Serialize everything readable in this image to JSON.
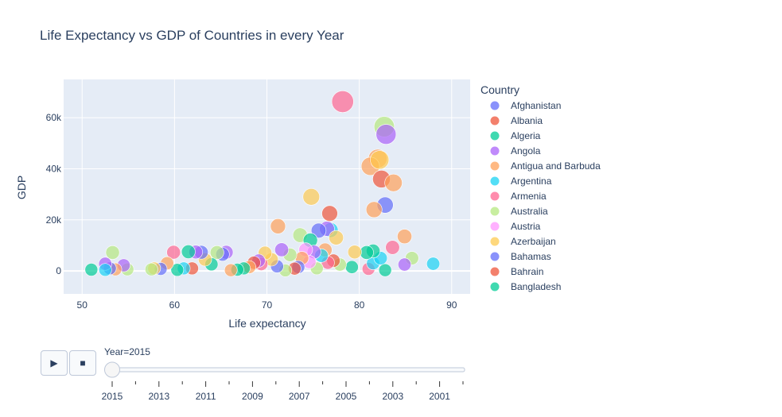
{
  "chart_data": {
    "type": "scatter",
    "title": "Life Expectancy vs GDP of Countries in every Year",
    "xlabel": "Life expectancy",
    "ylabel": "GDP",
    "xlim": [
      48,
      92
    ],
    "ylim": [
      -9000,
      75000
    ],
    "xticks": [
      50,
      60,
      70,
      80,
      90
    ],
    "yticks": [
      0,
      20000,
      40000,
      60000
    ],
    "ytick_labels": [
      "0",
      "20k",
      "40k",
      "60k"
    ],
    "grid": true,
    "legend_title": "Country",
    "legend_position": "right",
    "series": [
      {
        "name": "Afghanistan",
        "color": "#636efa"
      },
      {
        "name": "Albania",
        "color": "#EF553B"
      },
      {
        "name": "Algeria",
        "color": "#00cc96"
      },
      {
        "name": "Angola",
        "color": "#ab63fa"
      },
      {
        "name": "Antigua and Barbuda",
        "color": "#FFA15A"
      },
      {
        "name": "Argentina",
        "color": "#19d3f3"
      },
      {
        "name": "Armenia",
        "color": "#FF6692"
      },
      {
        "name": "Australia",
        "color": "#B6E880"
      },
      {
        "name": "Austria",
        "color": "#FF97FF"
      },
      {
        "name": "Azerbaijan",
        "color": "#FECB52"
      },
      {
        "name": "Bahamas",
        "color": "#636efa"
      },
      {
        "name": "Bahrain",
        "color": "#EF553B"
      },
      {
        "name": "Bangladesh",
        "color": "#00cc96"
      }
    ],
    "points": [
      [
        78.2,
        66300,
        "#FF6692"
      ],
      [
        82.7,
        56500,
        "#B6E880"
      ],
      [
        82.9,
        53500,
        "#ab63fa"
      ],
      [
        82.0,
        44000,
        "#FFA15A"
      ],
      [
        81.2,
        41000,
        "#FFA15A"
      ],
      [
        82.2,
        43500,
        "#FECB52"
      ],
      [
        82.4,
        36000,
        "#EF553B"
      ],
      [
        83.7,
        34500,
        "#FFA15A"
      ],
      [
        74.8,
        29000,
        "#FECB52"
      ],
      [
        82.8,
        25800,
        "#636efa"
      ],
      [
        81.6,
        24000,
        "#FFA15A"
      ],
      [
        76.8,
        22500,
        "#EF553B"
      ],
      [
        71.2,
        17500,
        "#FFA15A"
      ],
      [
        76.9,
        16000,
        "#19d3f3"
      ],
      [
        76.5,
        16500,
        "#ab63fa"
      ],
      [
        75.6,
        15800,
        "#636efa"
      ],
      [
        73.6,
        14000,
        "#B6E880"
      ],
      [
        84.9,
        13500,
        "#FFA15A"
      ],
      [
        77.5,
        13000,
        "#FECB52"
      ],
      [
        74.7,
        12000,
        "#00cc96"
      ],
      [
        83.6,
        9200,
        "#FF6692"
      ],
      [
        85.7,
        5000,
        "#B6E880"
      ],
      [
        88.0,
        2800,
        "#19d3f3"
      ],
      [
        84.9,
        2500,
        "#ab63fa"
      ],
      [
        82.8,
        300,
        "#00cc96"
      ],
      [
        81.0,
        800,
        "#FF6692"
      ],
      [
        81.5,
        3000,
        "#19d3f3"
      ],
      [
        82.3,
        5000,
        "#19d3f3"
      ],
      [
        81.5,
        7800,
        "#00cc96"
      ],
      [
        80.8,
        7200,
        "#00cc96"
      ],
      [
        79.5,
        7400,
        "#FECB52"
      ],
      [
        79.2,
        1500,
        "#00cc96"
      ],
      [
        77.9,
        2500,
        "#B6E880"
      ],
      [
        77.2,
        4000,
        "#EF553B"
      ],
      [
        76.6,
        3200,
        "#FF6692"
      ],
      [
        76.3,
        8200,
        "#FFA15A"
      ],
      [
        75.9,
        6000,
        "#19d3f3"
      ],
      [
        75.4,
        1000,
        "#B6E880"
      ],
      [
        75.1,
        7400,
        "#ab63fa"
      ],
      [
        74.6,
        3500,
        "#FF97FF"
      ],
      [
        74.2,
        8300,
        "#FF97FF"
      ],
      [
        73.8,
        5000,
        "#FFA15A"
      ],
      [
        73.4,
        1500,
        "#636efa"
      ],
      [
        73.0,
        900,
        "#EF553B"
      ],
      [
        72.5,
        6300,
        "#B6E880"
      ],
      [
        72.0,
        200,
        "#B6E880"
      ],
      [
        71.6,
        8300,
        "#ab63fa"
      ],
      [
        71.1,
        1800,
        "#636efa"
      ],
      [
        70.5,
        4500,
        "#FECB52"
      ],
      [
        69.8,
        7000,
        "#FECB52"
      ],
      [
        69.4,
        2700,
        "#FF6692"
      ],
      [
        69.1,
        4000,
        "#ab63fa"
      ],
      [
        68.6,
        3200,
        "#EF553B"
      ],
      [
        68.1,
        1500,
        "#FFA15A"
      ],
      [
        67.5,
        1000,
        "#00cc96"
      ],
      [
        66.8,
        500,
        "#00cc96"
      ],
      [
        66.1,
        300,
        "#FFA15A"
      ],
      [
        65.6,
        7300,
        "#ab63fa"
      ],
      [
        65.2,
        6500,
        "#636efa"
      ],
      [
        64.6,
        7200,
        "#B6E880"
      ],
      [
        64.0,
        2600,
        "#00cc96"
      ],
      [
        63.3,
        4500,
        "#FECB52"
      ],
      [
        62.9,
        7300,
        "#636efa"
      ],
      [
        62.3,
        7400,
        "#ab63fa"
      ],
      [
        61.9,
        1000,
        "#EF553B"
      ],
      [
        61.5,
        7500,
        "#00cc96"
      ],
      [
        61.0,
        1000,
        "#19d3f3"
      ],
      [
        60.3,
        400,
        "#00cc96"
      ],
      [
        59.9,
        7300,
        "#FF6692"
      ],
      [
        59.2,
        3000,
        "#FFA15A"
      ],
      [
        58.5,
        800,
        "#636efa"
      ],
      [
        57.8,
        1000,
        "#FECB52"
      ],
      [
        57.5,
        600,
        "#B6E880"
      ],
      [
        54.9,
        600,
        "#B6E880"
      ],
      [
        54.5,
        2200,
        "#ab63fa"
      ],
      [
        53.6,
        600,
        "#FFA15A"
      ],
      [
        53.3,
        7200,
        "#B6E880"
      ],
      [
        53.0,
        1000,
        "#636efa"
      ],
      [
        52.5,
        2800,
        "#ab63fa"
      ],
      [
        52.5,
        400,
        "#19d3f3"
      ],
      [
        51.0,
        500,
        "#00cc96"
      ]
    ]
  },
  "slider": {
    "current_label": "Year=2015",
    "play_label": "▶",
    "stop_label": "■",
    "ticks": [
      "2015",
      "2013",
      "2011",
      "2009",
      "2007",
      "2005",
      "2003",
      "2001"
    ]
  }
}
